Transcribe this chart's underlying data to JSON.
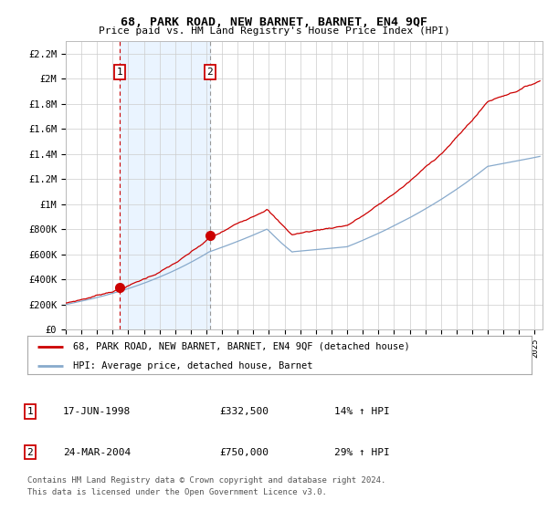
{
  "title": "68, PARK ROAD, NEW BARNET, BARNET, EN4 9QF",
  "subtitle": "Price paid vs. HM Land Registry's House Price Index (HPI)",
  "ylabel_ticks": [
    "£0",
    "£200K",
    "£400K",
    "£600K",
    "£800K",
    "£1M",
    "£1.2M",
    "£1.4M",
    "£1.6M",
    "£1.8M",
    "£2M",
    "£2.2M"
  ],
  "ytick_vals": [
    0,
    200000,
    400000,
    600000,
    800000,
    1000000,
    1200000,
    1400000,
    1600000,
    1800000,
    2000000,
    2200000
  ],
  "ylim": [
    0,
    2300000
  ],
  "xlim_start": 1995.0,
  "xlim_end": 2025.5,
  "background_color": "#ffffff",
  "plot_bg_color": "#ffffff",
  "grid_color": "#cccccc",
  "sale1_year": 1998.46,
  "sale1_price": 332500,
  "sale1_label": "1",
  "sale1_date": "17-JUN-1998",
  "sale1_hpi": "14% ↑ HPI",
  "sale2_year": 2004.23,
  "sale2_price": 750000,
  "sale2_label": "2",
  "sale2_date": "24-MAR-2004",
  "sale2_hpi": "29% ↑ HPI",
  "line_color_price": "#cc0000",
  "line_color_hpi": "#88aacc",
  "shade_color": "#ddeeff",
  "legend_label_price": "68, PARK ROAD, NEW BARNET, BARNET, EN4 9QF (detached house)",
  "legend_label_hpi": "HPI: Average price, detached house, Barnet",
  "footer1": "Contains HM Land Registry data © Crown copyright and database right 2024.",
  "footer2": "This data is licensed under the Open Government Licence v3.0."
}
